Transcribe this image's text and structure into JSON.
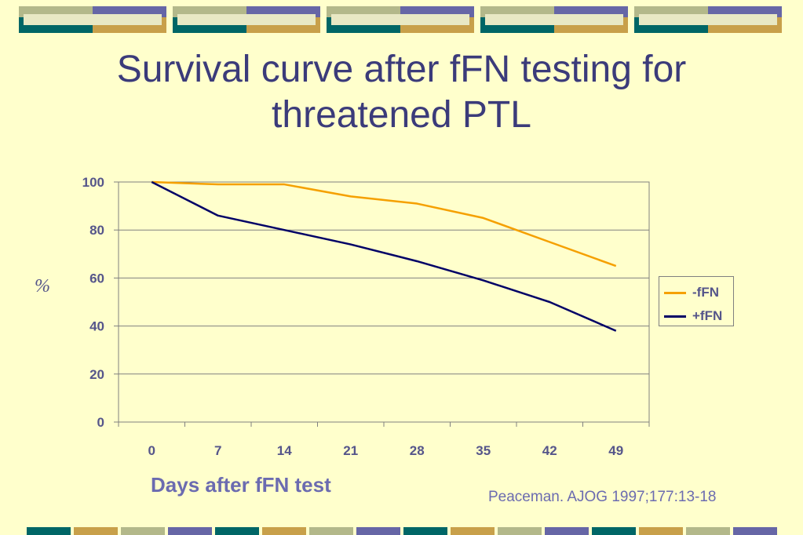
{
  "slide": {
    "title_line1": "Survival curve after fFN testing for",
    "title_line2": "threatened PTL",
    "citation": "Peaceman. AJOG 1997;177:13-18"
  },
  "colors": {
    "background": "#ffffcc",
    "title": "#3b3b7a",
    "series_neg": "#f5a000",
    "series_pos": "#000066",
    "deco_sage": "#b3b88a",
    "deco_purple": "#6666a6",
    "deco_teal": "#006666",
    "deco_gold": "#c8a04a"
  },
  "chart_data": {
    "type": "line",
    "title": "",
    "xlabel": "Days after fFN test",
    "ylabel": "%",
    "categories": [
      "0",
      "7",
      "14",
      "21",
      "28",
      "35",
      "42",
      "49"
    ],
    "yticks": [
      "0",
      "20",
      "40",
      "60",
      "80",
      "100"
    ],
    "ylim": [
      0,
      100
    ],
    "grid": "horizontal",
    "legend_position": "right",
    "series": [
      {
        "name": "-fFN",
        "color": "#f5a000",
        "values": [
          100,
          99,
          99,
          94,
          91,
          85,
          75,
          65
        ]
      },
      {
        "name": "+fFN",
        "color": "#000066",
        "values": [
          100,
          86,
          80,
          74,
          67,
          59,
          50,
          38
        ]
      }
    ]
  }
}
